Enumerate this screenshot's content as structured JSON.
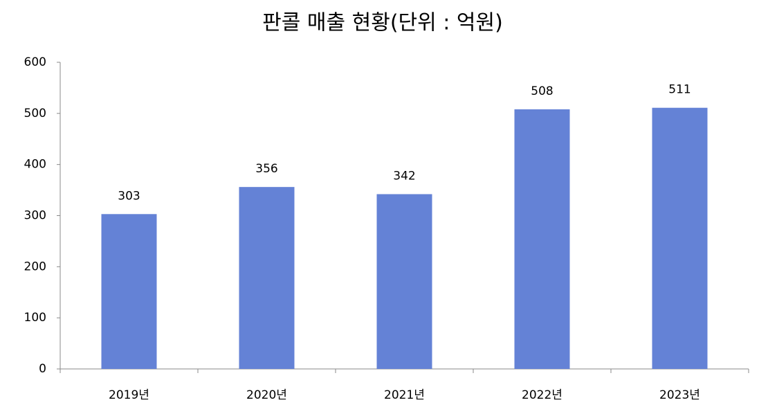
{
  "chart_data": {
    "type": "bar",
    "title": "판콜 매출 현황(단위 : 억원)",
    "categories": [
      "2019년",
      "2020년",
      "2021년",
      "2022년",
      "2023년"
    ],
    "values": [
      303,
      356,
      342,
      508,
      511
    ],
    "color": "#6482d6",
    "ylim": [
      0,
      600
    ],
    "yticks": [
      0,
      100,
      200,
      300,
      400,
      500,
      600
    ],
    "grid": false
  }
}
